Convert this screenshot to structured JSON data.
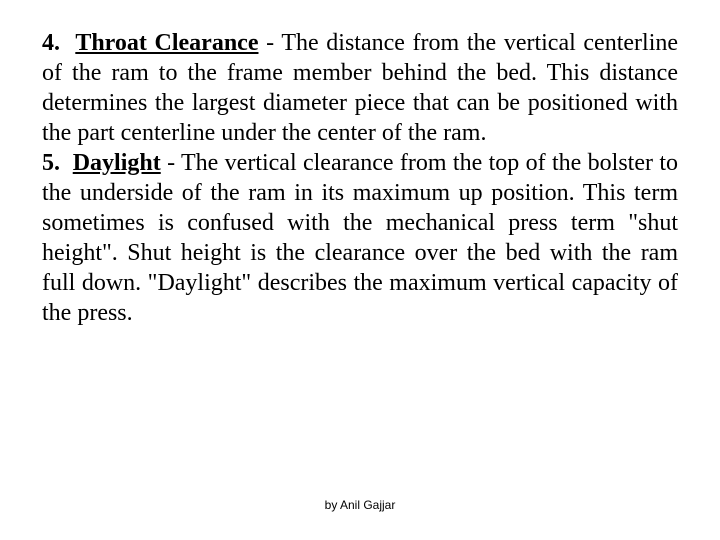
{
  "body": {
    "font_family": "Times New Roman, serif",
    "text_color": "#000000",
    "background_color": "#ffffff",
    "font_size_pt": 18,
    "text_align": "justify"
  },
  "items": [
    {
      "number": "4.",
      "term": "Throat Clearance",
      "definition": " - The distance from the vertical centerline of the ram to the frame member behind the bed. This distance determines the largest diameter piece that can be positioned with the part centerline under the center of the ram."
    },
    {
      "number": "5.",
      "term": "Daylight",
      "definition": " - The vertical clearance from the top of the bolster to the underside of the ram in its maximum up position. This term sometimes is confused with the mechanical press term \"shut height\". Shut height is the clearance over the bed with the ram full down. \"Daylight\" describes the maximum vertical capacity of the press."
    }
  ],
  "footer": {
    "text": "by Anil Gajjar",
    "font_family": "Arial, sans-serif",
    "font_size_pt": 9,
    "color": "#000000"
  }
}
